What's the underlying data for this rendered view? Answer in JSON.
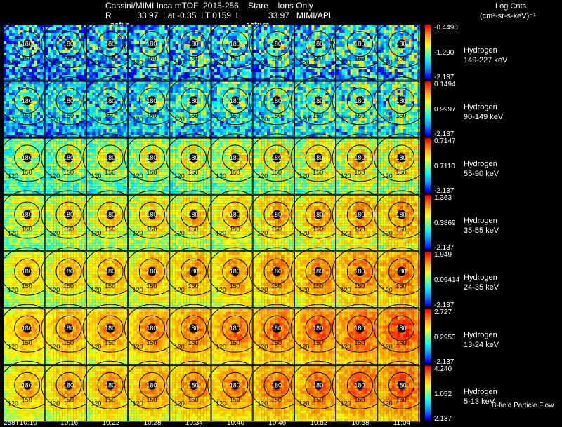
{
  "header": {
    "title": "Cassini/MIMI Inca mTOF  2015-256    Stare    Ions Only",
    "meta": "R           33.97  Lat -0.35  LT 0159  L            33.97   MIMI/APL",
    "saturn_labels": [
      "satur",
      "saturn"
    ]
  },
  "units": {
    "line1": "Log Cnts",
    "line2": "(cm²-sr-s-keV)⁻¹"
  },
  "footer": {
    "flow_label": "B-field Particle Flow"
  },
  "chart_data": {
    "type": "heatmap",
    "title": "Cassini/MIMI Inca mTOF 2015-256 Stare Ions Only",
    "x_time_labels": [
      "258T10:10",
      "10:16",
      "10:22",
      "10:28",
      "10:34",
      "10:40",
      "10:46",
      "10:52",
      "10:58",
      "11:04"
    ],
    "contour_labels": [
      "180",
      "150",
      "120"
    ],
    "colorscale": [
      "#0000ff",
      "#00ffff",
      "#ffff00",
      "#ff0000"
    ],
    "rows": [
      {
        "species": "Hydrogen",
        "energy": "149-227 keV",
        "cb_max": "-0.4498",
        "cb_mid": "-1.290",
        "cb_min": "-2.137"
      },
      {
        "species": "Hydrogen",
        "energy": "90-149 keV",
        "cb_max": "0.1494",
        "cb_mid": "0.9997",
        "cb_min": "-2.137"
      },
      {
        "species": "Hydrogen",
        "energy": "55-90 keV",
        "cb_max": "0.7147",
        "cb_mid": "0.7110",
        "cb_min": "-2.137"
      },
      {
        "species": "Hydrogen",
        "energy": "35-55 keV",
        "cb_max": "1.363",
        "cb_mid": "0.3869",
        "cb_min": "-2.137"
      },
      {
        "species": "Hydrogen",
        "energy": "24-35 keV",
        "cb_max": "1.949",
        "cb_mid": "0.09414",
        "cb_min": "-2.137"
      },
      {
        "species": "Hydrogen",
        "energy": "13-24 keV",
        "cb_max": "2.727",
        "cb_mid": "0.2953",
        "cb_min": "-2.137"
      },
      {
        "species": "Hydrogen",
        "energy": "5-13 keV",
        "cb_max": "4.240",
        "cb_mid": "1.052",
        "cb_min": "2.137"
      }
    ]
  }
}
